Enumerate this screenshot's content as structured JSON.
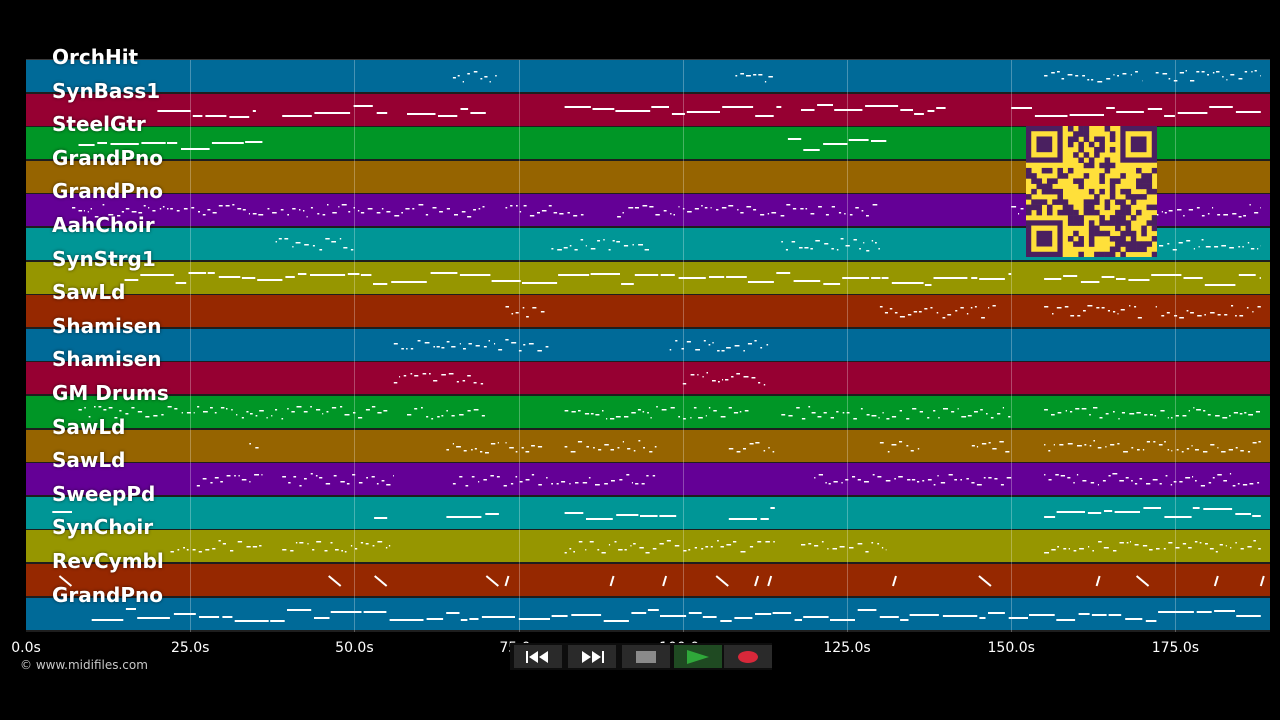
{
  "tracks": [
    {
      "name": "OrchHit",
      "color": "#006a98"
    },
    {
      "name": "SynBass1",
      "color": "#960032"
    },
    {
      "name": "SteelGtr",
      "color": "#009626"
    },
    {
      "name": "GrandPno",
      "color": "#966400"
    },
    {
      "name": "GrandPno",
      "color": "#640096"
    },
    {
      "name": "AahChoir",
      "color": "#009696"
    },
    {
      "name": "SynStrg1",
      "color": "#969600"
    },
    {
      "name": "SawLd",
      "color": "#962800"
    },
    {
      "name": "Shamisen",
      "color": "#006a98"
    },
    {
      "name": "Shamisen",
      "color": "#960032"
    },
    {
      "name": "GM Drums",
      "color": "#009626"
    },
    {
      "name": "SawLd",
      "color": "#966400"
    },
    {
      "name": "SawLd",
      "color": "#640096"
    },
    {
      "name": "SweepPd",
      "color": "#009696"
    },
    {
      "name": "SynChoir",
      "color": "#969600"
    },
    {
      "name": "RevCymbl",
      "color": "#962800"
    },
    {
      "name": "GrandPno",
      "color": "#006a98"
    }
  ],
  "timeline": {
    "ticks": [
      "0.0s",
      "25.0s",
      "50.0s",
      "75.0s",
      "100.0s",
      "125.0s",
      "150.0s",
      "175.0s"
    ],
    "tick_values": [
      0,
      25,
      50,
      75,
      100,
      125,
      150,
      175
    ],
    "max_seconds": 189.4
  },
  "copyright": "© www.midifiles.com",
  "transport": {
    "rewind_icon": "rewind-icon",
    "fast_forward_icon": "fast-forward-icon",
    "stop_icon": "stop-icon",
    "play_icon": "play-icon",
    "record_icon": "record-icon",
    "play_color": "#2fa83a",
    "record_color": "#d8283a"
  },
  "qr_code": {
    "icon": "qr-code-icon",
    "color": "#ffe03a",
    "dark_color": "#4a2060"
  }
}
